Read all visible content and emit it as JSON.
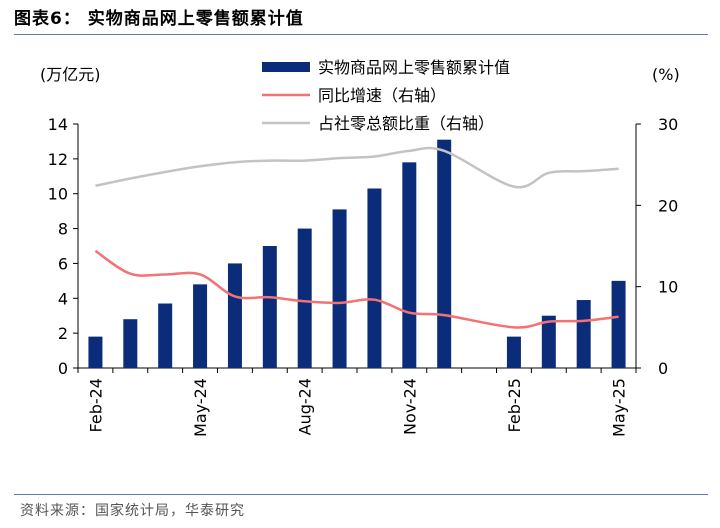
{
  "title": "图表6： 实物商品网上零售额累计值",
  "source": "资料来源：国家统计局，华泰研究",
  "chart_data": {
    "type": "bar",
    "left_unit": "(万亿元)",
    "right_unit": "(%)",
    "ylim_left": [
      0,
      14
    ],
    "ylim_right": [
      0,
      30
    ],
    "left_ticks": [
      "0",
      "2",
      "4",
      "6",
      "8",
      "10",
      "12",
      "14"
    ],
    "right_ticks": [
      "0",
      "10",
      "20",
      "30"
    ],
    "months": [
      "Feb-24",
      "Mar-24",
      "Apr-24",
      "May-24",
      "Jun-24",
      "Jul-24",
      "Aug-24",
      "Sep-24",
      "Oct-24",
      "Nov-24",
      "Dec-24",
      "Jan-25",
      "Feb-25",
      "Mar-25",
      "Apr-25",
      "May-25"
    ],
    "x_tick_labels": [
      {
        "index": 0,
        "label": "Feb-24"
      },
      {
        "index": 3,
        "label": "May-24"
      },
      {
        "index": 6,
        "label": "Aug-24"
      },
      {
        "index": 9,
        "label": "Nov-24"
      },
      {
        "index": 12,
        "label": "Feb-25"
      },
      {
        "index": 15,
        "label": "May-25"
      }
    ],
    "series": [
      {
        "name": "实物商品网上零售额累计值",
        "type": "bar",
        "axis": "left",
        "color": "#0b2c78",
        "values": [
          1.8,
          2.8,
          3.7,
          4.8,
          6.0,
          7.0,
          8.0,
          9.1,
          10.3,
          11.8,
          13.1,
          null,
          1.8,
          3.0,
          3.9,
          5.0
        ]
      },
      {
        "name": "同比增速（右轴）",
        "type": "line",
        "axis": "right",
        "color": "#f47174",
        "values": [
          14.4,
          11.6,
          11.5,
          11.5,
          8.8,
          8.7,
          8.2,
          8.0,
          8.4,
          6.8,
          6.5,
          null,
          5.0,
          5.7,
          5.8,
          6.3
        ]
      },
      {
        "name": "占社零总额比重（右轴）",
        "type": "line",
        "axis": "right",
        "color": "#c3c3c3",
        "values": [
          22.4,
          23.3,
          24.1,
          24.8,
          25.3,
          25.5,
          25.5,
          25.8,
          26.0,
          26.7,
          26.7,
          null,
          22.3,
          24.0,
          24.2,
          24.5
        ]
      }
    ]
  }
}
